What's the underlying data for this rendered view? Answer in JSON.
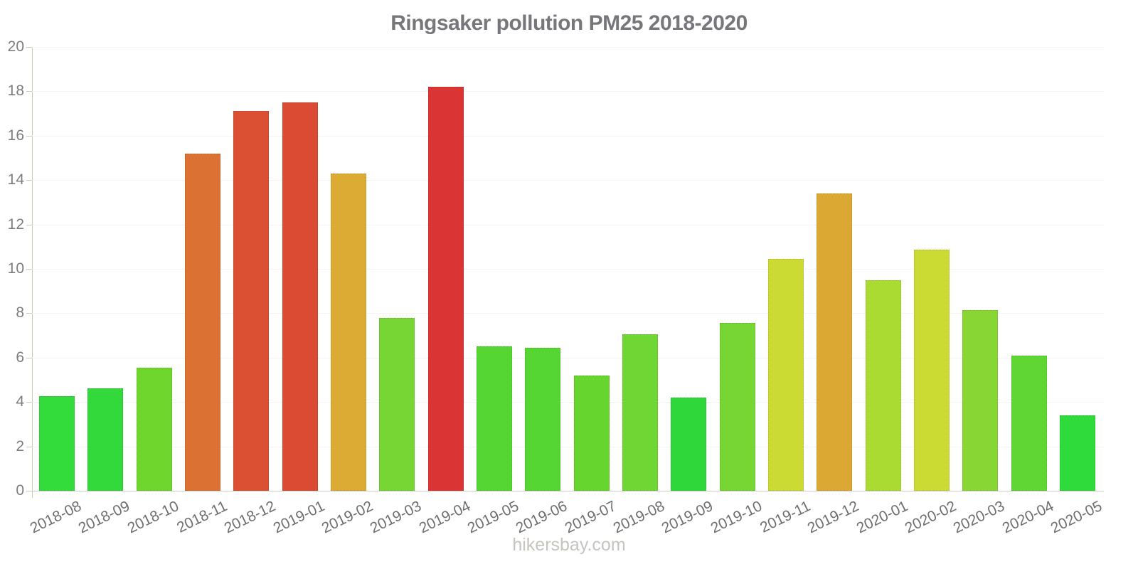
{
  "page": {
    "background": "#ffffff"
  },
  "header": {
    "title": "Ringsaker pollution PM25 2018-2020",
    "title_color": "#76777b"
  },
  "footer": {
    "text": "hikersbay.com",
    "color": "#c7c3bf"
  },
  "chart_data": {
    "type": "bar",
    "title": "Ringsaker pollution PM25 2018-2020",
    "xlabel": "",
    "ylabel": "",
    "ylim": [
      0,
      20
    ],
    "yticks": [
      0,
      2,
      4,
      6,
      8,
      10,
      12,
      14,
      16,
      18,
      20
    ],
    "grid": true,
    "legend": false,
    "x_label_rotation_deg": -26,
    "axis_color": "#c9c9bc",
    "grid_color": "#f4f4f1",
    "tick_label_color": "#7c7d7f",
    "categories": [
      "2018-08",
      "2018-09",
      "2018-10",
      "2018-11",
      "2018-12",
      "2019-01",
      "2019-02",
      "2019-03",
      "2019-04",
      "2019-05",
      "2019-06",
      "2019-07",
      "2019-08",
      "2019-09",
      "2019-10",
      "2019-11",
      "2019-12",
      "2020-01",
      "2020-02",
      "2020-03",
      "2020-04",
      "2020-05"
    ],
    "values": [
      4.25,
      4.6,
      5.55,
      15.2,
      17.1,
      17.5,
      14.3,
      7.8,
      18.2,
      6.5,
      6.45,
      5.2,
      7.05,
      4.2,
      7.55,
      10.45,
      13.4,
      9.5,
      10.85,
      8.15,
      6.1,
      3.4
    ],
    "bar_colors": [
      "#33db3b",
      "#33d93b",
      "#6fd62e",
      "#db7233",
      "#db4f33",
      "#db4a33",
      "#dbab33",
      "#77d633",
      "#db3434",
      "#55d633",
      "#55d633",
      "#66d62e",
      "#70d633",
      "#2fd73a",
      "#77d633",
      "#ccdb33",
      "#dba833",
      "#aadb33",
      "#ccdb33",
      "#88d633",
      "#5fd633",
      "#2fdb3b"
    ]
  }
}
